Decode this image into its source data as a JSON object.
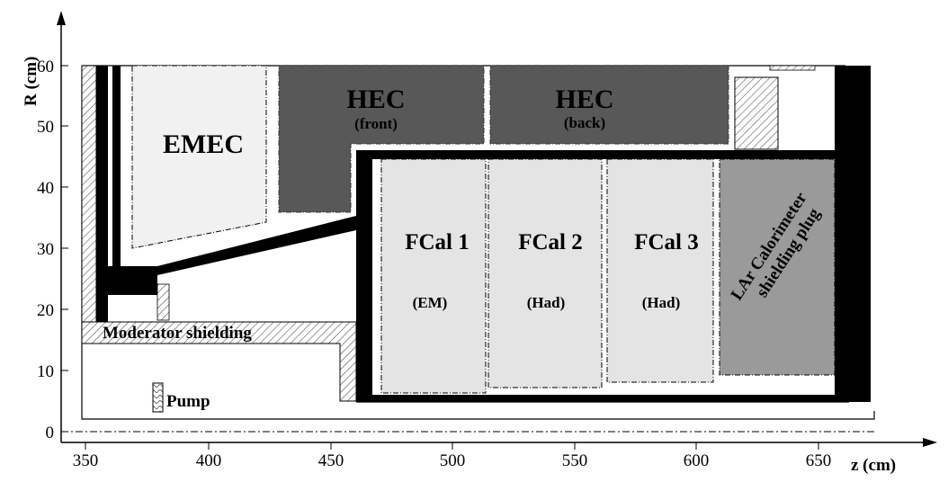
{
  "axes": {
    "x_label": "z (cm)",
    "y_label": "R (cm)",
    "x_ticks": [
      "350",
      "400",
      "450",
      "500",
      "550",
      "600",
      "650"
    ],
    "y_ticks": [
      "0",
      "10",
      "20",
      "30",
      "40",
      "50",
      "60"
    ]
  },
  "labels": {
    "emec": "EMEC",
    "hec_front": "HEC",
    "hec_front_sub": "(front)",
    "hec_back": "HEC",
    "hec_back_sub": "(back)",
    "fcal1": "FCal 1",
    "fcal1_sub": "(EM)",
    "fcal2": "FCal 2",
    "fcal2_sub": "(Had)",
    "fcal3": "FCal 3",
    "fcal3_sub": "(Had)",
    "plug_line1": "LAr Calorimeter",
    "plug_line2": "shielding plug",
    "moderator": "Moderator shielding",
    "pump": "Pump"
  },
  "colors": {
    "hec": "#585858",
    "fcal": "#e4e4e4",
    "emec": "#f1f1f1",
    "plug": "#9a9a9a",
    "structure": "#000000"
  }
}
